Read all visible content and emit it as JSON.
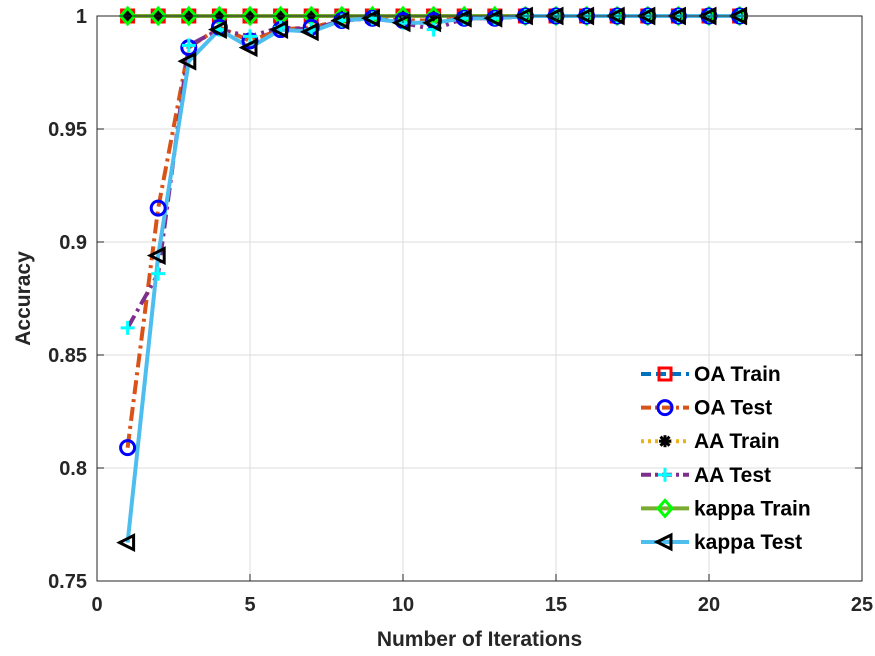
{
  "chart_data": {
    "type": "line",
    "xlabel": "Number of Iterations",
    "ylabel": "Accuracy",
    "xlim": [
      0,
      25
    ],
    "ylim": [
      0.75,
      1
    ],
    "xticks": [
      0,
      5,
      10,
      15,
      20,
      25
    ],
    "yticks": [
      0.75,
      0.8,
      0.85,
      0.9,
      0.95,
      1
    ],
    "ytick_labels": [
      "0.75",
      "0.8",
      "0.85",
      "0.9",
      "0.95",
      "1"
    ],
    "grid": true,
    "legend_position": "bottom-right",
    "x": [
      1,
      2,
      3,
      4,
      5,
      6,
      7,
      8,
      9,
      10,
      11,
      12,
      13,
      14,
      15,
      16,
      17,
      18,
      19,
      20,
      21
    ],
    "series": [
      {
        "name": "OA Train",
        "line_color": "#0072BD",
        "marker_color": "#ff0000",
        "dash": "dash",
        "marker": "square",
        "values": [
          1,
          1,
          1,
          1,
          1,
          1,
          1,
          1,
          1,
          1,
          1,
          1,
          1,
          1,
          1,
          1,
          1,
          1,
          1,
          1,
          1
        ]
      },
      {
        "name": "OA Test",
        "line_color": "#D95319",
        "marker_color": "#0000ff",
        "dash": "dashdot",
        "marker": "circle",
        "values": [
          0.809,
          0.915,
          0.986,
          0.995,
          0.989,
          0.994,
          0.995,
          0.998,
          0.999,
          0.998,
          0.998,
          0.999,
          0.999,
          1,
          1,
          1,
          1,
          1,
          1,
          1,
          1
        ]
      },
      {
        "name": "AA Train",
        "line_color": "#EDB120",
        "marker_color": "#000000",
        "dash": "dot",
        "marker": "asterisk",
        "values": [
          1,
          1,
          1,
          1,
          1,
          1,
          1,
          1,
          1,
          1,
          1,
          1,
          1,
          1,
          1,
          1,
          1,
          1,
          1,
          1,
          1
        ]
      },
      {
        "name": "AA Test",
        "line_color": "#7E2F8E",
        "marker_color": "#00ffff",
        "dash": "dashdot",
        "marker": "plus",
        "values": [
          0.862,
          0.886,
          0.987,
          0.994,
          0.991,
          0.995,
          0.994,
          0.998,
          0.999,
          0.997,
          0.994,
          0.999,
          0.999,
          1,
          1,
          1,
          1,
          1,
          1,
          1,
          1
        ]
      },
      {
        "name": "kappa Train",
        "line_color": "#77AC30",
        "marker_color": "#00ff00",
        "dash": "solid",
        "marker": "diamond",
        "values": [
          1,
          1,
          1,
          1,
          1,
          1,
          1,
          1,
          1,
          1,
          1,
          1,
          1,
          1,
          1,
          1,
          1,
          1,
          1,
          1,
          1
        ]
      },
      {
        "name": "kappa Test",
        "line_color": "#4DBEEE",
        "marker_color": "#000000",
        "dash": "solid",
        "marker": "triangle-left",
        "values": [
          0.767,
          0.894,
          0.98,
          0.994,
          0.986,
          0.994,
          0.993,
          0.998,
          0.999,
          0.997,
          0.997,
          0.999,
          0.999,
          1,
          1,
          1,
          1,
          1,
          1,
          1,
          1
        ]
      }
    ]
  }
}
